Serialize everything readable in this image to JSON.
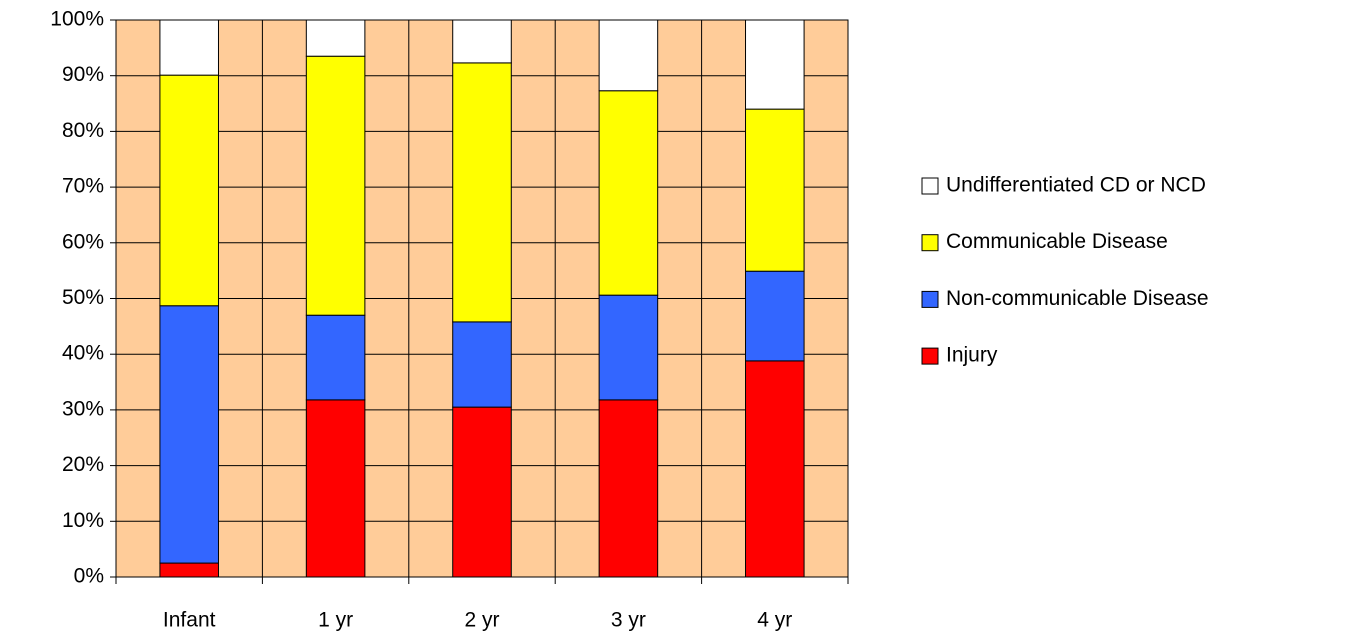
{
  "chart_data": {
    "type": "bar",
    "stacked": true,
    "categories": [
      "Infant",
      "1 yr",
      "2 yr",
      "3 yr",
      "4 yr"
    ],
    "series": [
      {
        "name": "Injury",
        "color": "#ff0000",
        "values": [
          2.5,
          31.8,
          30.5,
          31.8,
          38.8
        ]
      },
      {
        "name": "Non-communicable Disease",
        "color": "#3366ff",
        "values": [
          46.2,
          15.2,
          15.3,
          18.8,
          16.1
        ]
      },
      {
        "name": "Communicable Disease",
        "color": "#ffff00",
        "values": [
          41.4,
          46.5,
          46.5,
          36.7,
          29.1
        ]
      },
      {
        "name": "Undifferentiated CD or NCD",
        "color": "#ffffff",
        "values": [
          9.9,
          6.5,
          7.7,
          12.7,
          16.0
        ]
      }
    ],
    "ylim": [
      0,
      100
    ],
    "yticks": [
      {
        "value": 0,
        "label": "0%"
      },
      {
        "value": 10,
        "label": "10%"
      },
      {
        "value": 20,
        "label": "20%"
      },
      {
        "value": 30,
        "label": "30%"
      },
      {
        "value": 40,
        "label": "40%"
      },
      {
        "value": 50,
        "label": "50%"
      },
      {
        "value": 60,
        "label": "60%"
      },
      {
        "value": 70,
        "label": "70%"
      },
      {
        "value": 80,
        "label": "80%"
      },
      {
        "value": 90,
        "label": "90%"
      },
      {
        "value": 100,
        "label": "100%"
      }
    ],
    "grid": true,
    "plot_background": "#ffcc99",
    "legend": "right"
  }
}
